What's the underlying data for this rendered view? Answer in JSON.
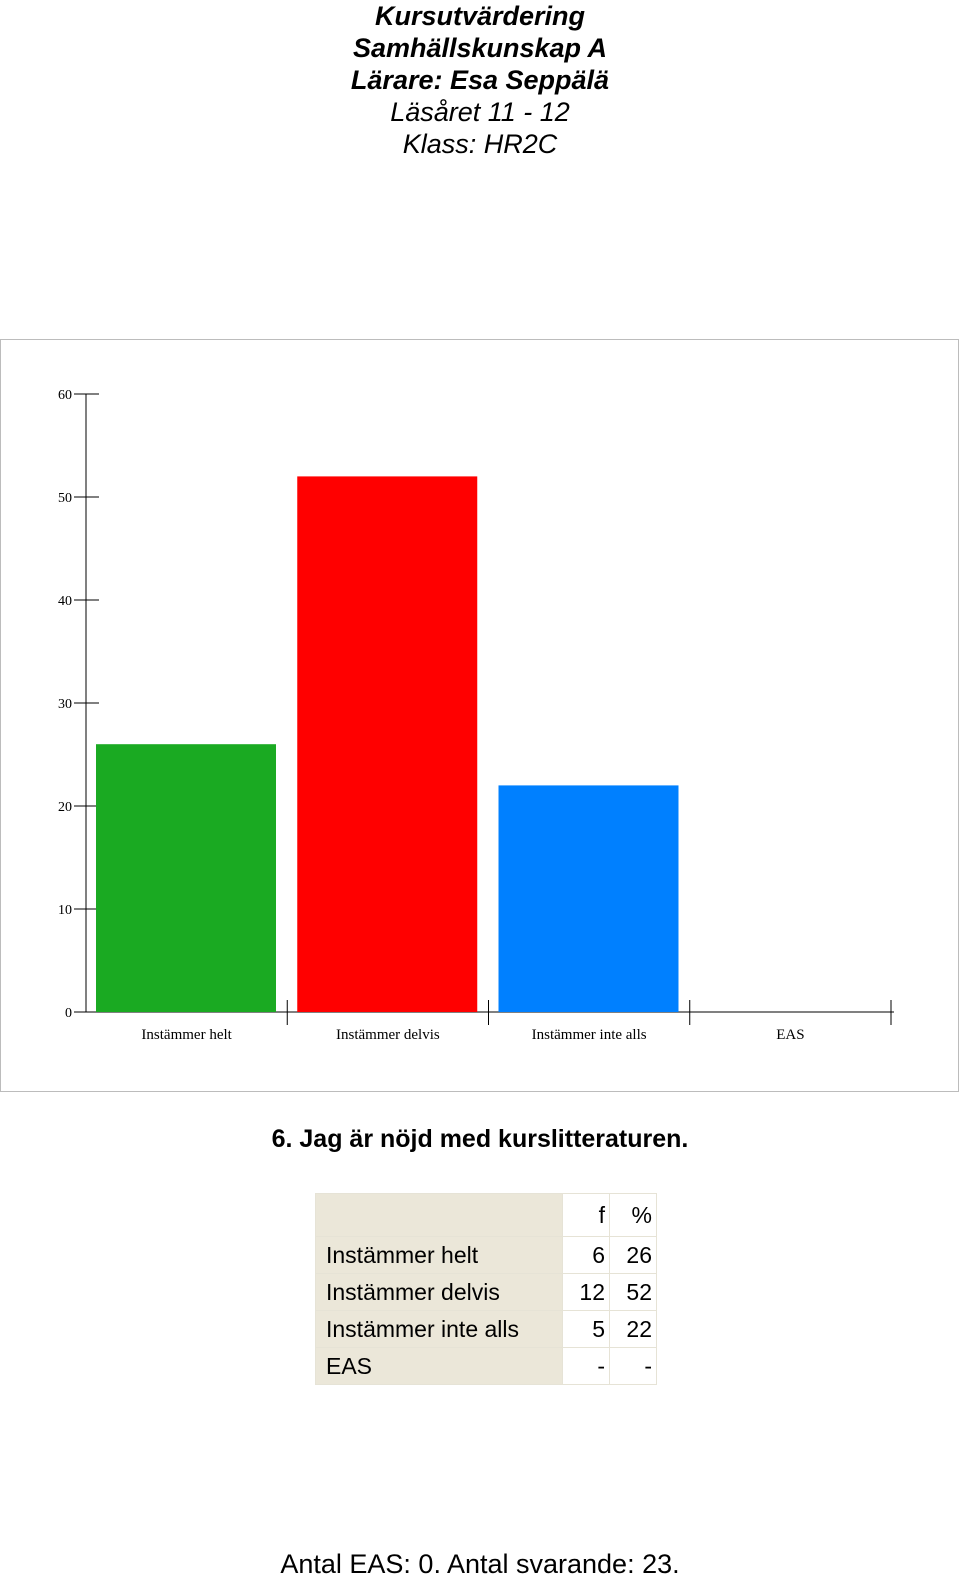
{
  "header": {
    "title": "Kursutvärdering",
    "course": "Samhällskunskap A",
    "teacher": "Lärare: Esa Seppälä",
    "year": "Läsåret 11 - 12",
    "class": "Klass: HR2C"
  },
  "chart_data": {
    "type": "bar",
    "categories": [
      "Instämmer helt",
      "Instämmer delvis",
      "Instämmer inte alls",
      "EAS"
    ],
    "values": [
      26,
      52,
      22,
      0
    ],
    "colors": [
      "#1aaa22",
      "#ff0000",
      "#0080ff",
      "#ffffff"
    ],
    "ylim": [
      0,
      60
    ],
    "yticks": [
      "0",
      "10",
      "20",
      "30",
      "40",
      "50",
      "60"
    ],
    "grid": false,
    "title": "",
    "xlabel": "",
    "ylabel": ""
  },
  "question": "6. Jag är nöjd med kurslitteraturen.",
  "table": {
    "headers": [
      "f",
      "%"
    ],
    "rows": [
      {
        "label": "Instämmer helt",
        "f": "6",
        "pct": "26"
      },
      {
        "label": "Instämmer delvis",
        "f": "12",
        "pct": "52"
      },
      {
        "label": "Instämmer inte alls",
        "f": "5",
        "pct": "22"
      },
      {
        "label": "EAS",
        "f": "-",
        "pct": "-"
      }
    ]
  },
  "footer": "Antal EAS: 0. Antal svarande:  23."
}
